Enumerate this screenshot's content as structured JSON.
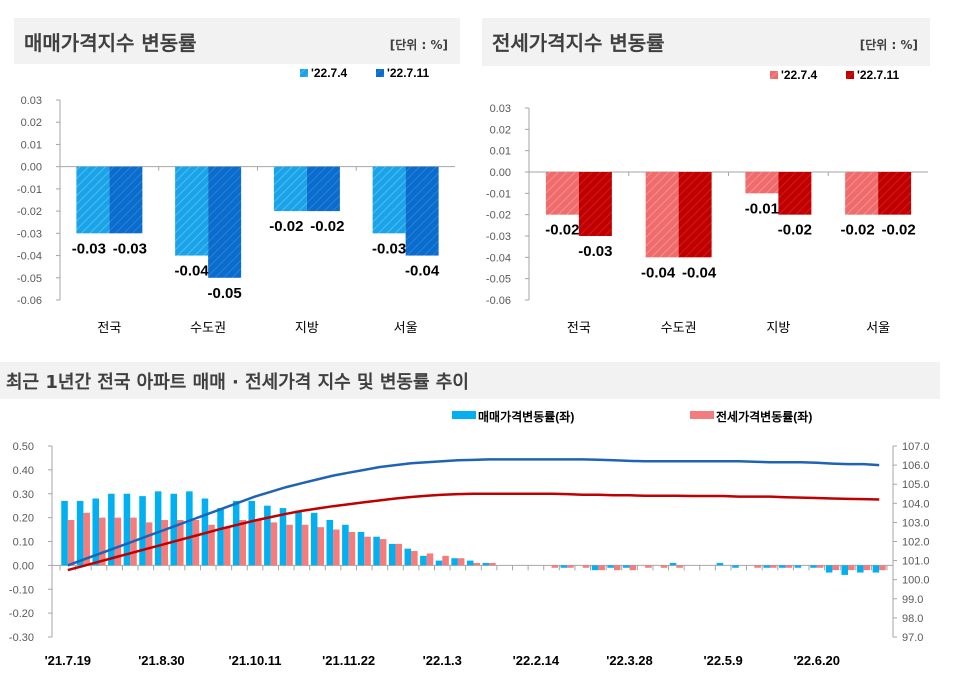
{
  "chart_data": [
    {
      "type": "bar",
      "title": "매매가격지수 변동률",
      "unit": "[단위 : %]",
      "categories": [
        "전국",
        "수도권",
        "지방",
        "서울"
      ],
      "series": [
        {
          "name": "'22.7.4",
          "values": [
            -0.03,
            -0.04,
            -0.02,
            -0.03
          ],
          "labels": [
            "-0.03",
            "-0.04",
            "-0.02",
            "-0.03"
          ]
        },
        {
          "name": "'22.7.11",
          "values": [
            -0.03,
            -0.05,
            -0.02,
            -0.04
          ],
          "labels": [
            "-0.03",
            "-0.05",
            "-0.02",
            "-0.04"
          ]
        }
      ],
      "ylim": [
        -0.06,
        0.03
      ],
      "yticks": [
        "0.03",
        "0.02",
        "0.01",
        "0.00",
        "-0.01",
        "-0.02",
        "-0.03",
        "-0.04",
        "-0.05",
        "-0.06"
      ],
      "legend": "top-right",
      "colors": [
        "#1aa3e8",
        "#0a6ccc"
      ]
    },
    {
      "type": "bar",
      "title": "전세가격지수 변동률",
      "unit": "[단위 : %]",
      "categories": [
        "전국",
        "수도권",
        "지방",
        "서울"
      ],
      "series": [
        {
          "name": "'22.7.4",
          "values": [
            -0.02,
            -0.04,
            -0.01,
            -0.02
          ],
          "labels": [
            "-0.02",
            "-0.04",
            "-0.01",
            "-0.02"
          ]
        },
        {
          "name": "'22.7.11",
          "values": [
            -0.03,
            -0.04,
            -0.02,
            -0.02
          ],
          "labels": [
            "-0.03",
            "-0.04",
            "-0.02",
            "-0.02"
          ]
        }
      ],
      "ylim": [
        -0.06,
        0.03
      ],
      "yticks": [
        "0.03",
        "0.02",
        "0.01",
        "0.00",
        "-0.01",
        "-0.02",
        "-0.03",
        "-0.04",
        "-0.05",
        "-0.06"
      ],
      "legend": "top-right",
      "colors": [
        "#f06c6c",
        "#c00000"
      ]
    },
    {
      "type": "bar+line",
      "title": "최근 1년간 전국 아파트 매매 · 전세가격 지수 및 변동률 추이",
      "xticks": [
        "'21.7.19",
        "'21.8.30",
        "'21.10.11",
        "'21.11.22",
        "'22.1.3",
        "'22.2.14",
        "'22.3.28",
        "'22.5.9",
        "'22.6.20"
      ],
      "yticks_left": [
        "0.50",
        "0.40",
        "0.30",
        "0.20",
        "0.10",
        "0.00",
        "-0.10",
        "-0.20",
        "-0.30"
      ],
      "yticks_right": [
        "107.0",
        "106.0",
        "105.0",
        "104.0",
        "103.0",
        "102.0",
        "101.0",
        "100.0",
        "99.0",
        "98.0",
        "97.0"
      ],
      "ylim_left": [
        -0.3,
        0.5
      ],
      "ylim_right": [
        97.0,
        107.0
      ],
      "legend": "top-right",
      "bar_series": [
        {
          "name": "매매가격변동률(좌)",
          "color": "#00b0f0",
          "values": [
            0.27,
            0.27,
            0.28,
            0.3,
            0.3,
            0.29,
            0.31,
            0.3,
            0.31,
            0.28,
            0.24,
            0.27,
            0.27,
            0.25,
            0.24,
            0.23,
            0.22,
            0.19,
            0.17,
            0.14,
            0.12,
            0.09,
            0.07,
            0.04,
            0.02,
            0.03,
            0.02,
            0.01,
            0.0,
            0.0,
            0.0,
            0.0,
            -0.01,
            0.0,
            -0.02,
            -0.01,
            -0.01,
            0.0,
            0.0,
            0.01,
            0.0,
            0.0,
            0.01,
            -0.01,
            0.0,
            -0.01,
            -0.01,
            -0.01,
            -0.01,
            -0.03,
            -0.04,
            -0.03,
            -0.03
          ]
        },
        {
          "name": "전세가격변동률(좌)",
          "color": "#f47c7c",
          "values": [
            0.19,
            0.22,
            0.2,
            0.2,
            0.2,
            0.18,
            0.19,
            0.19,
            0.19,
            0.17,
            0.16,
            0.19,
            0.19,
            0.18,
            0.17,
            0.17,
            0.16,
            0.15,
            0.14,
            0.12,
            0.11,
            0.09,
            0.06,
            0.05,
            0.04,
            0.03,
            0.01,
            0.01,
            0.0,
            0.0,
            0.0,
            -0.01,
            -0.01,
            -0.01,
            -0.02,
            -0.02,
            -0.02,
            -0.01,
            -0.01,
            -0.01,
            0.0,
            0.0,
            0.0,
            0.0,
            -0.01,
            -0.01,
            -0.01,
            0.0,
            -0.01,
            -0.02,
            -0.02,
            -0.02,
            -0.02
          ]
        }
      ],
      "line_series": [
        {
          "axis": "right",
          "color": "#1f64b4",
          "values": [
            100.75,
            101.05,
            101.35,
            101.65,
            101.95,
            102.25,
            102.55,
            102.85,
            103.15,
            103.45,
            103.75,
            104.05,
            104.35,
            104.6,
            104.85,
            105.05,
            105.25,
            105.45,
            105.6,
            105.75,
            105.9,
            106.0,
            106.1,
            106.15,
            106.2,
            106.25,
            106.27,
            106.3,
            106.3,
            106.3,
            106.3,
            106.3,
            106.3,
            106.3,
            106.28,
            106.25,
            106.22,
            106.2,
            106.2,
            106.2,
            106.2,
            106.2,
            106.2,
            106.2,
            106.18,
            106.15,
            106.15,
            106.15,
            106.12,
            106.08,
            106.05,
            106.05,
            106.0
          ]
        },
        {
          "axis": "right",
          "color": "#c00000",
          "values": [
            100.5,
            100.72,
            100.94,
            101.16,
            101.38,
            101.6,
            101.82,
            102.04,
            102.26,
            102.48,
            102.7,
            102.9,
            103.1,
            103.28,
            103.45,
            103.6,
            103.73,
            103.85,
            103.95,
            104.05,
            104.15,
            104.25,
            104.33,
            104.4,
            104.45,
            104.48,
            104.5,
            104.5,
            104.5,
            104.5,
            104.5,
            104.5,
            104.48,
            104.45,
            104.45,
            104.42,
            104.42,
            104.4,
            104.4,
            104.4,
            104.38,
            104.38,
            104.38,
            104.35,
            104.35,
            104.35,
            104.32,
            104.3,
            104.28,
            104.25,
            104.23,
            104.22,
            104.2
          ]
        }
      ]
    }
  ]
}
